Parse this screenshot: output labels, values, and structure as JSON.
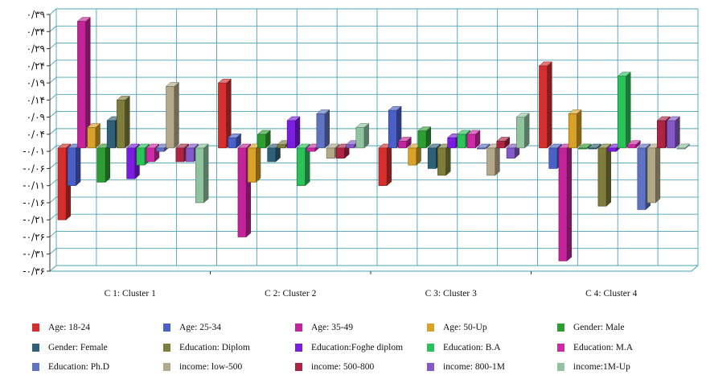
{
  "chart_data": {
    "type": "bar",
    "categories": [
      "C 1: Cluster 1",
      "C 2: Cluster 2",
      "C 3: Cluster 3",
      "C 4: Cluster 4"
    ],
    "y_ticks": [
      "۰/۳۹",
      "۰/۳۴",
      "۰/۲۹",
      "۰/۲۴",
      "۰/۱۹",
      "۰/۱۴",
      "۰/۰۹",
      "۰/۰۴",
      "-۰/۰۱",
      "-۰/۰۶",
      "-۰/۱۱",
      "-۰/۱۶",
      "-۰/۲۱",
      "-۰/۲۶",
      "-۰/۳۱",
      "-۰/۳۶"
    ],
    "ylim": [
      -0.36,
      0.39
    ],
    "grid": true,
    "legend_position": "bottom",
    "series": [
      {
        "name": "Age: 18-24",
        "color": "#d42e2e",
        "values": [
          -0.21,
          0.19,
          -0.11,
          0.24
        ]
      },
      {
        "name": "Age: 25-34",
        "color": "#4a5fc8",
        "values": [
          -0.11,
          0.03,
          0.11,
          -0.06
        ]
      },
      {
        "name": "Age: 35-49",
        "color": "#c4249a",
        "values": [
          0.37,
          -0.26,
          0.02,
          -0.33
        ]
      },
      {
        "name": "Age:  50-Up",
        "color": "#d7a227",
        "values": [
          0.06,
          -0.1,
          -0.05,
          0.1
        ]
      },
      {
        "name": "Gender:  Male",
        "color": "#2e9e33",
        "values": [
          -0.1,
          0.04,
          0.05,
          0.0
        ]
      },
      {
        "name": "Gender: Female",
        "color": "#2e6078",
        "values": [
          0.08,
          -0.04,
          -0.06,
          0.0
        ]
      },
      {
        "name": "Education: Diplom",
        "color": "#7f7d3b",
        "values": [
          0.14,
          0.01,
          -0.08,
          -0.17
        ]
      },
      {
        "name": "Education:Foghe diplom",
        "color": "#7a1de0",
        "values": [
          -0.09,
          0.08,
          0.03,
          -0.01
        ]
      },
      {
        "name": "Education:  B.A",
        "color": "#2bc25a",
        "values": [
          -0.05,
          -0.11,
          0.04,
          0.21
        ]
      },
      {
        "name": "Education: M.A",
        "color": "#cd2aa6",
        "values": [
          -0.04,
          -0.01,
          0.04,
          0.01
        ]
      },
      {
        "name": "Education: Ph.D",
        "color": "#5f73c2",
        "values": [
          -0.01,
          0.1,
          0.0,
          -0.18
        ]
      },
      {
        "name": "income: low-500",
        "color": "#b3a989",
        "values": [
          0.18,
          -0.03,
          -0.08,
          -0.16
        ]
      },
      {
        "name": "income: 500-800",
        "color": "#ad2542",
        "values": [
          -0.04,
          -0.03,
          0.02,
          0.08
        ]
      },
      {
        "name": "income: 800-1M",
        "color": "#8458c7",
        "values": [
          -0.04,
          0.01,
          -0.03,
          0.08
        ]
      },
      {
        "name": "income:1M-Up",
        "color": "#8fc49e",
        "values": [
          -0.16,
          0.06,
          0.09,
          0.0
        ]
      }
    ]
  }
}
